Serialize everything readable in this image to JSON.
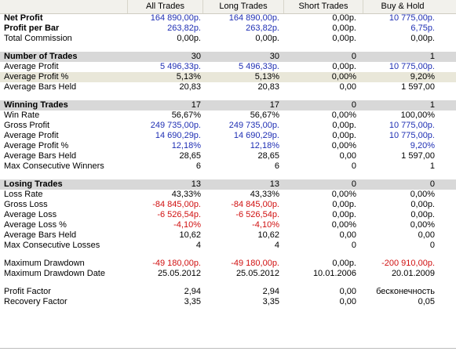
{
  "header": {
    "col1": "All Trades",
    "col2": "Long Trades",
    "col3": "Short Trades",
    "col4": "Buy & Hold"
  },
  "rows": [
    {
      "type": "bold",
      "label": "Net Profit",
      "v": [
        "164 890,00р.",
        "164 890,00р.",
        "0,00р.",
        "10 775,00р."
      ],
      "c": [
        "pos",
        "pos",
        "",
        "pos"
      ]
    },
    {
      "type": "bold",
      "label": "Profit per Bar",
      "v": [
        "263,82р.",
        "263,82р.",
        "0,00р.",
        "6,75р."
      ],
      "c": [
        "pos",
        "pos",
        "",
        "pos"
      ]
    },
    {
      "type": "normal",
      "label": "Total Commission",
      "v": [
        "0,00р.",
        "0,00р.",
        "0,00р.",
        "0,00р."
      ],
      "c": [
        "",
        "",
        "",
        ""
      ]
    },
    {
      "type": "blank"
    },
    {
      "type": "section",
      "label": "Number of Trades",
      "v": [
        "30",
        "30",
        "0",
        "1"
      ],
      "c": [
        "",
        "",
        "",
        ""
      ]
    },
    {
      "type": "normal",
      "label": "Average Profit",
      "v": [
        "5 496,33р.",
        "5 496,33р.",
        "0,00р.",
        "10 775,00р."
      ],
      "c": [
        "pos",
        "pos",
        "",
        "pos"
      ]
    },
    {
      "type": "hl",
      "label": "Average Profit %",
      "v": [
        "5,13%",
        "5,13%",
        "0,00%",
        "9,20%"
      ],
      "c": [
        "",
        "",
        "",
        ""
      ]
    },
    {
      "type": "normal",
      "label": "Average Bars Held",
      "v": [
        "20,83",
        "20,83",
        "0,00",
        "1 597,00"
      ],
      "c": [
        "",
        "",
        "",
        ""
      ]
    },
    {
      "type": "blank"
    },
    {
      "type": "section",
      "label": "Winning Trades",
      "v": [
        "17",
        "17",
        "0",
        "1"
      ],
      "c": [
        "",
        "",
        "",
        ""
      ]
    },
    {
      "type": "normal",
      "label": "Win Rate",
      "v": [
        "56,67%",
        "56,67%",
        "0,00%",
        "100,00%"
      ],
      "c": [
        "",
        "",
        "",
        ""
      ]
    },
    {
      "type": "normal",
      "label": "Gross Profit",
      "v": [
        "249 735,00р.",
        "249 735,00р.",
        "0,00р.",
        "10 775,00р."
      ],
      "c": [
        "pos",
        "pos",
        "",
        "pos"
      ]
    },
    {
      "type": "normal",
      "label": "Average Profit",
      "v": [
        "14 690,29р.",
        "14 690,29р.",
        "0,00р.",
        "10 775,00р."
      ],
      "c": [
        "pos",
        "pos",
        "",
        "pos"
      ]
    },
    {
      "type": "normal",
      "label": "Average Profit %",
      "v": [
        "12,18%",
        "12,18%",
        "0,00%",
        "9,20%"
      ],
      "c": [
        "pos",
        "pos",
        "",
        "pos"
      ]
    },
    {
      "type": "normal",
      "label": "Average Bars Held",
      "v": [
        "28,65",
        "28,65",
        "0,00",
        "1 597,00"
      ],
      "c": [
        "",
        "",
        "",
        ""
      ]
    },
    {
      "type": "normal",
      "label": "Max Consecutive Winners",
      "v": [
        "6",
        "6",
        "0",
        "1"
      ],
      "c": [
        "",
        "",
        "",
        ""
      ]
    },
    {
      "type": "blank"
    },
    {
      "type": "section",
      "label": "Losing Trades",
      "v": [
        "13",
        "13",
        "0",
        "0"
      ],
      "c": [
        "",
        "",
        "",
        ""
      ]
    },
    {
      "type": "normal",
      "label": "Loss Rate",
      "v": [
        "43,33%",
        "43,33%",
        "0,00%",
        "0,00%"
      ],
      "c": [
        "",
        "",
        "",
        ""
      ]
    },
    {
      "type": "normal",
      "label": "Gross Loss",
      "v": [
        "-84 845,00р.",
        "-84 845,00р.",
        "0,00р.",
        "0,00р."
      ],
      "c": [
        "neg",
        "neg",
        "",
        ""
      ]
    },
    {
      "type": "normal",
      "label": "Average Loss",
      "v": [
        "-6 526,54р.",
        "-6 526,54р.",
        "0,00р.",
        "0,00р."
      ],
      "c": [
        "neg",
        "neg",
        "",
        ""
      ]
    },
    {
      "type": "normal",
      "label": "Average Loss %",
      "v": [
        "-4,10%",
        "-4,10%",
        "0,00%",
        "0,00%"
      ],
      "c": [
        "neg",
        "neg",
        "",
        ""
      ]
    },
    {
      "type": "normal",
      "label": "Average Bars Held",
      "v": [
        "10,62",
        "10,62",
        "0,00",
        "0,00"
      ],
      "c": [
        "",
        "",
        "",
        ""
      ]
    },
    {
      "type": "normal",
      "label": "Max Consecutive Losses",
      "v": [
        "4",
        "4",
        "0",
        "0"
      ],
      "c": [
        "",
        "",
        "",
        ""
      ]
    },
    {
      "type": "blank"
    },
    {
      "type": "normal",
      "label": "Maximum Drawdown",
      "v": [
        "-49 180,00р.",
        "-49 180,00р.",
        "0,00р.",
        "-200 910,00р."
      ],
      "c": [
        "neg",
        "neg",
        "",
        "neg"
      ]
    },
    {
      "type": "normal",
      "label": "Maximum Drawdown Date",
      "v": [
        "25.05.2012",
        "25.05.2012",
        "10.01.2006",
        "20.01.2009"
      ],
      "c": [
        "",
        "",
        "",
        ""
      ]
    },
    {
      "type": "blank"
    },
    {
      "type": "normal",
      "label": "Profit Factor",
      "v": [
        "2,94",
        "2,94",
        "0,00",
        "бесконечность"
      ],
      "c": [
        "",
        "",
        "",
        ""
      ]
    },
    {
      "type": "normal",
      "label": "Recovery Factor",
      "v": [
        "3,35",
        "3,35",
        "0,00",
        "0,05"
      ],
      "c": [
        "",
        "",
        "",
        ""
      ]
    }
  ],
  "colors": {
    "positive": "#1f2fb4",
    "negative": "#d01010",
    "section_bg": "#d8d8d8",
    "highlight_bg": "#e9e7d9"
  }
}
